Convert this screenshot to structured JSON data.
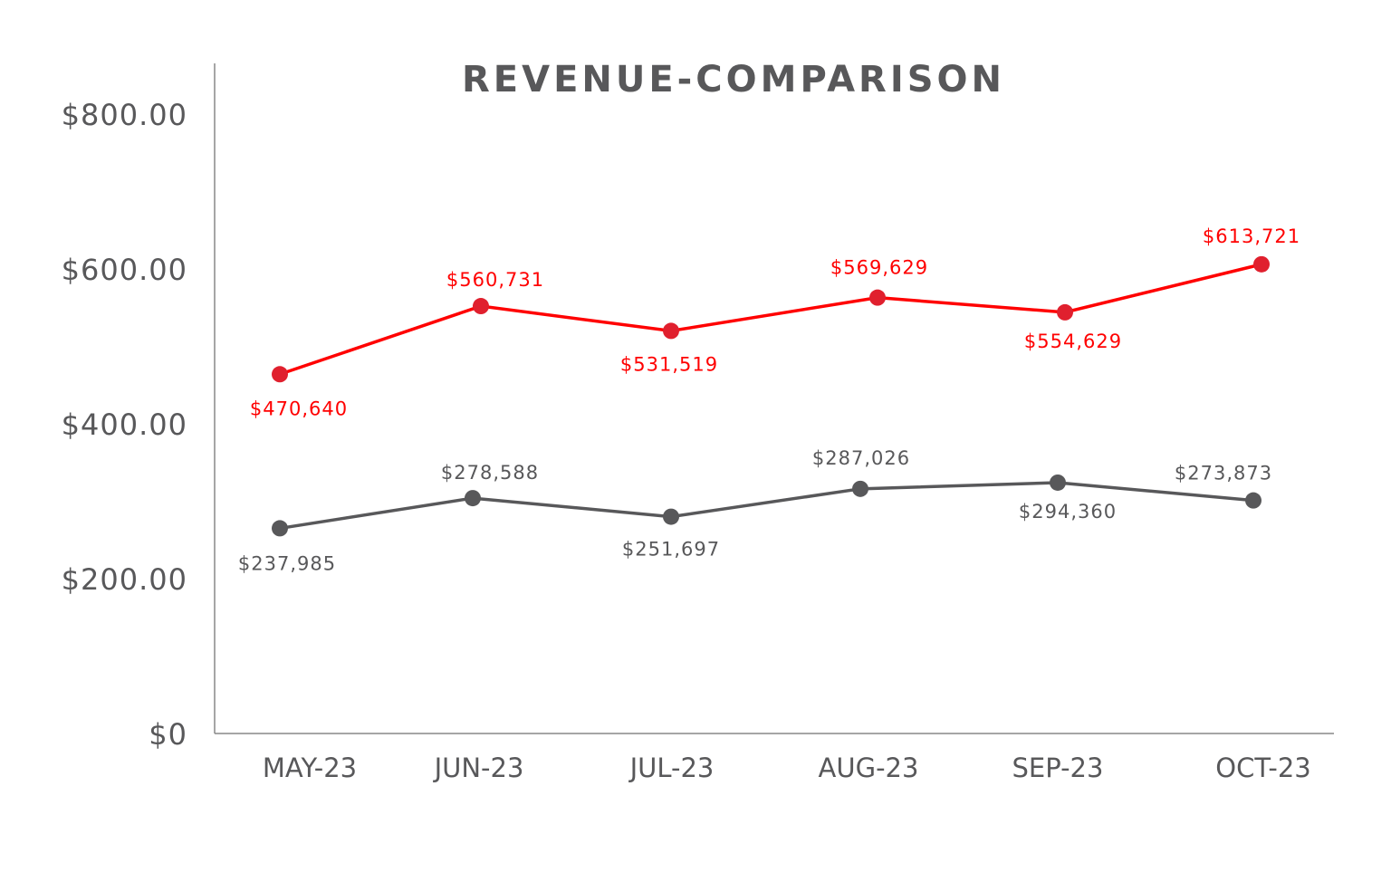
{
  "chart_data": {
    "type": "line",
    "title": "REVENUE-COMPARISON",
    "xlabel": "",
    "ylabel": "",
    "categories": [
      "MAY-23",
      "JUN-23",
      "JUL-23",
      "AUG-23",
      "SEP-23",
      "OCT-23"
    ],
    "yticks": [
      "$0",
      "$200.00",
      "$400.00",
      "$600.00",
      "$800.00"
    ],
    "ylim": [
      0,
      800
    ],
    "grid": false,
    "legend": "none",
    "series": [
      {
        "color": "#ff0000",
        "marker_color": "#e0202e",
        "values": [
          464,
          552,
          520,
          563,
          544,
          606
        ],
        "labels": [
          "$470,640",
          "$560,731",
          "$531,519",
          "$569,629",
          "$554,629",
          "$613,721"
        ]
      },
      {
        "color": "#58585a",
        "marker_color": "#58585a",
        "values": [
          265,
          304,
          280,
          316,
          324,
          301
        ],
        "labels": [
          "$237,985",
          "$278,588",
          "$251,697",
          "$287,026",
          "$294,360",
          "$273,873"
        ]
      }
    ]
  }
}
